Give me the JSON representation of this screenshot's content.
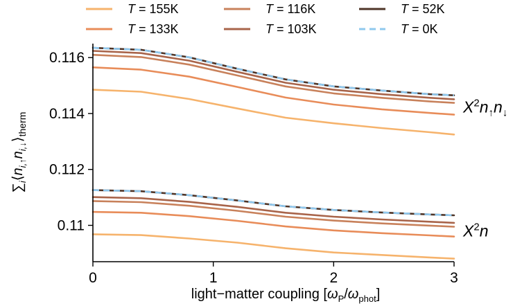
{
  "chart_data": {
    "type": "line",
    "xlabel": "light−matter coupling [ωP/ωphot]",
    "ylabel": "∑i⟨ni,↑ni,↓⟩therm",
    "xlim": [
      0,
      3
    ],
    "ylim": [
      0.1087,
      0.1165
    ],
    "x_ticks": [
      "0",
      "1",
      "2",
      "3"
    ],
    "y_ticks": [
      "0.11",
      "0.112",
      "0.114",
      "0.116"
    ],
    "y_tick_values": [
      0.11,
      0.112,
      0.114,
      0.116
    ],
    "x_tick_values": [
      0,
      1,
      2,
      3
    ],
    "grid": false,
    "legend_position": "top",
    "x": [
      0,
      0.4,
      0.8,
      1.2,
      1.6,
      2.0,
      2.4,
      2.8,
      3.0
    ],
    "annotations": [
      {
        "text": "X²n↑n↓",
        "group": "upper"
      },
      {
        "text": "X²n",
        "group": "lower"
      }
    ],
    "series": [
      {
        "name": "T = 155K",
        "label_var": "T",
        "label_val": " = 155K",
        "color": "#f6b36c",
        "dashed": false,
        "upper": [
          0.11485,
          0.11478,
          0.11452,
          0.11418,
          0.11385,
          0.11365,
          0.11348,
          0.11333,
          0.11325
        ],
        "lower": [
          0.10968,
          0.10965,
          0.10953,
          0.10938,
          0.10918,
          0.10903,
          0.10894,
          0.10885,
          0.10881
        ]
      },
      {
        "name": "T = 133K",
        "label_var": "T",
        "label_val": " = 133K",
        "color": "#e88c59",
        "dashed": false,
        "upper": [
          0.11565,
          0.11557,
          0.11532,
          0.11495,
          0.11457,
          0.11432,
          0.11415,
          0.11402,
          0.11396
        ],
        "lower": [
          0.11048,
          0.11045,
          0.11033,
          0.11016,
          0.10996,
          0.10982,
          0.10972,
          0.10964,
          0.1096
        ]
      },
      {
        "name": "T = 116K",
        "label_var": "T",
        "label_val": " = 116K",
        "color": "#c8815b",
        "dashed": false,
        "upper": [
          0.1161,
          0.11602,
          0.11575,
          0.11536,
          0.11497,
          0.11472,
          0.11456,
          0.11443,
          0.11438
        ],
        "lower": [
          0.11087,
          0.11083,
          0.1107,
          0.11052,
          0.11031,
          0.11017,
          0.11007,
          0.10999,
          0.10995
        ]
      },
      {
        "name": "T = 103K",
        "label_var": "T",
        "label_val": " = 103K",
        "color": "#a8644a",
        "dashed": false,
        "upper": [
          0.11624,
          0.11616,
          0.11589,
          0.11549,
          0.1151,
          0.11485,
          0.11469,
          0.11456,
          0.11451
        ],
        "lower": [
          0.11101,
          0.11097,
          0.11084,
          0.11066,
          0.11045,
          0.11031,
          0.11021,
          0.11013,
          0.11009
        ]
      },
      {
        "name": "T = 52K",
        "label_var": "T",
        "label_val": " = 52K",
        "color": "#4e3427",
        "dashed": false,
        "upper": [
          0.11635,
          0.11628,
          0.11601,
          0.1156,
          0.11522,
          0.11497,
          0.11482,
          0.11469,
          0.11465
        ],
        "lower": [
          0.11126,
          0.11122,
          0.11108,
          0.11089,
          0.11068,
          0.11055,
          0.11046,
          0.11039,
          0.11036
        ]
      },
      {
        "name": "T = 0K",
        "label_var": "T",
        "label_val": " = 0K",
        "color": "#8fc8ee",
        "dashed": true,
        "upper": [
          0.11635,
          0.11628,
          0.11601,
          0.1156,
          0.11522,
          0.11497,
          0.11482,
          0.11469,
          0.11465
        ],
        "lower": [
          0.11126,
          0.11122,
          0.11108,
          0.11089,
          0.11068,
          0.11055,
          0.11046,
          0.11039,
          0.11036
        ]
      }
    ]
  }
}
